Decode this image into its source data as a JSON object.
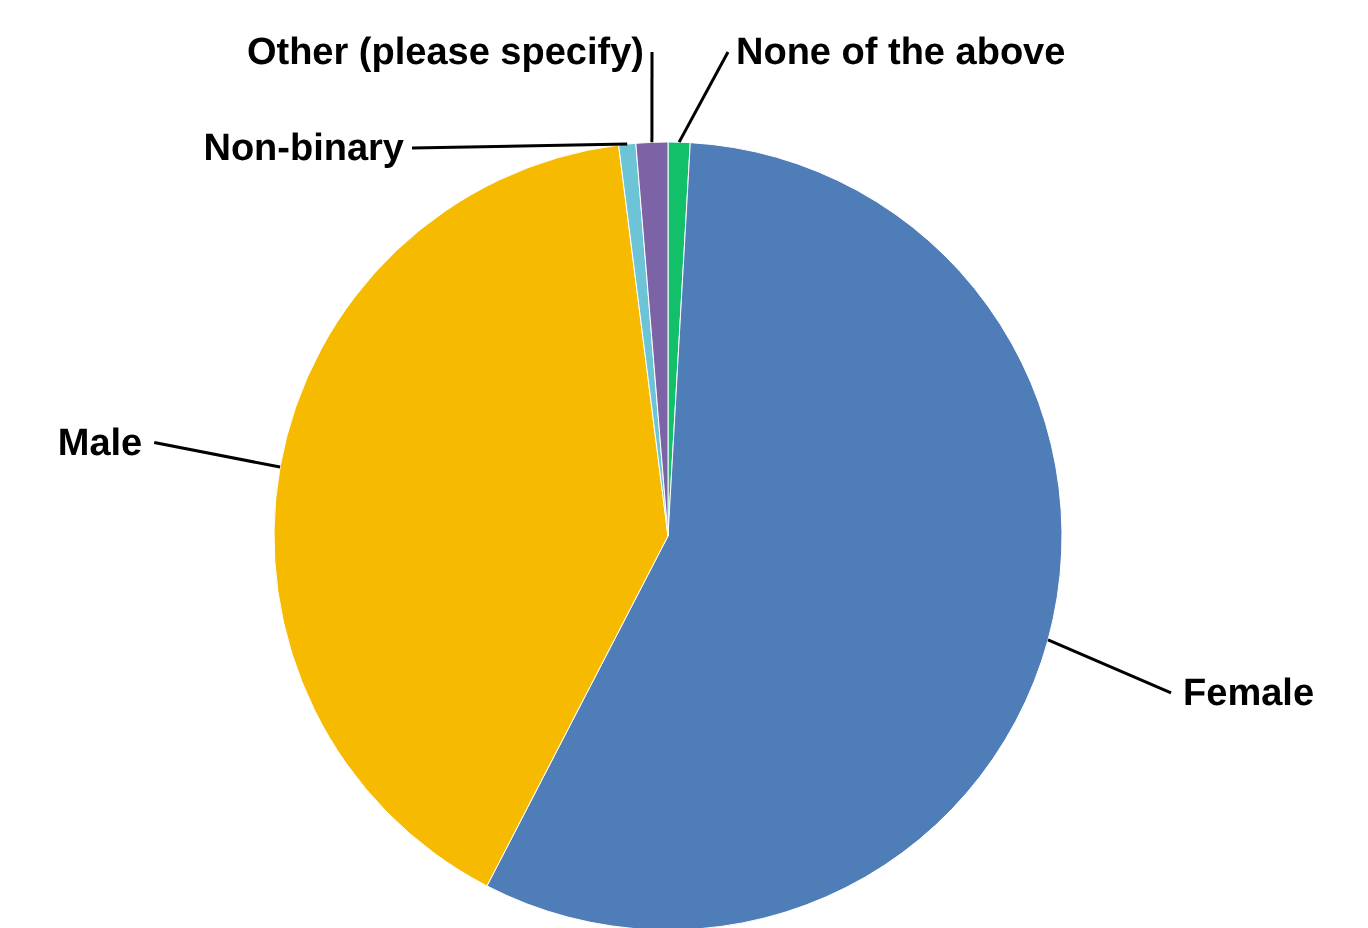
{
  "chart_data": {
    "type": "pie",
    "categories": [
      "None of the above",
      "Female",
      "Male",
      "Non-binary",
      "Other (please specify)"
    ],
    "values": [
      0.9,
      56.7,
      40.4,
      0.7,
      1.3
    ],
    "colors": [
      "#12c06a",
      "#4f7db8",
      "#f6bb00",
      "#6cc4d6",
      "#7b63a6"
    ]
  }
}
